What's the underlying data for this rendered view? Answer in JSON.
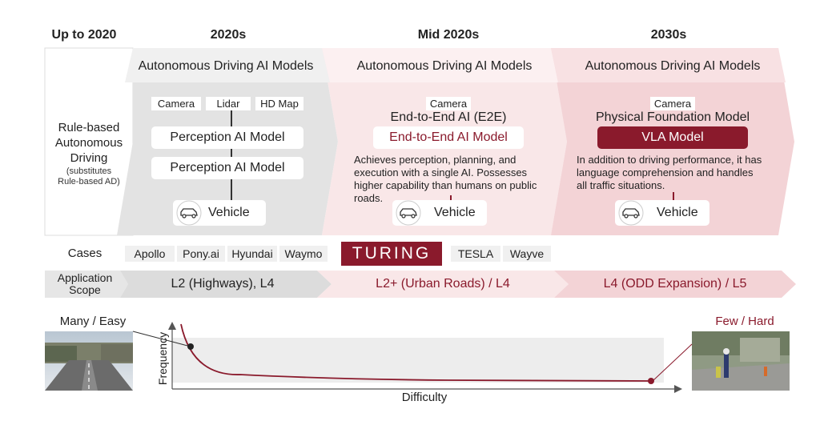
{
  "eras": {
    "up_to_2020": "Up to 2020",
    "e2020s": "2020s",
    "mid_2020s": "Mid 2020s",
    "e2030s": "2030s"
  },
  "rule_based": {
    "line1": "Rule-based",
    "line2": "Autonomous",
    "line3": "Driving",
    "sub1": "(substitutes",
    "sub2": "Rule-based AD)"
  },
  "col_2020s": {
    "title": "Autonomous Driving AI Models",
    "sensors": [
      "Camera",
      "Lidar",
      "HD Map"
    ],
    "model1": "Perception AI Model",
    "model2": "Perception AI Model",
    "vehicle": "Vehicle"
  },
  "col_mid": {
    "title": "Autonomous Driving AI Models",
    "sensor": "Camera",
    "heading": "End-to-End AI (E2E)",
    "model": "End-to-End AI Model",
    "desc_lines": [
      "Achieves perception, planning, and",
      "execution with a single AI. Possesses",
      "higher capability than humans on public",
      "roads."
    ],
    "vehicle": "Vehicle"
  },
  "col_2030s": {
    "title": "Autonomous Driving AI Models",
    "sensor": "Camera",
    "heading": "Physical Foundation Model",
    "model": "VLA Model",
    "desc_lines": [
      "In addition to driving performance, it has",
      "language comprehension and handles",
      "all traffic situations."
    ],
    "vehicle": "Vehicle"
  },
  "cases": {
    "label": "Cases",
    "left": [
      "Apollo",
      "Pony.ai",
      "Hyundai",
      "Waymo"
    ],
    "center_logo": "TURING",
    "right": [
      "TESLA",
      "Wayve"
    ]
  },
  "scope": {
    "label_line1": "Application",
    "label_line2": "Scope",
    "s2020s": "L2 (Highways), L4",
    "smid": "L2+ (Urban Roads) / L4",
    "s2030s": "L4 (ODD Expansion) / L5"
  },
  "graph": {
    "left_label": "Many / Easy",
    "right_label": "Few / Hard",
    "y_axis": "Frequency",
    "x_axis": "Difficulty"
  },
  "colors": {
    "accent": "#8a1a2c",
    "gray_panel": "#e4e4e4",
    "light_pink": "#f8e6e7",
    "mid_pink": "#f2d2d4"
  }
}
